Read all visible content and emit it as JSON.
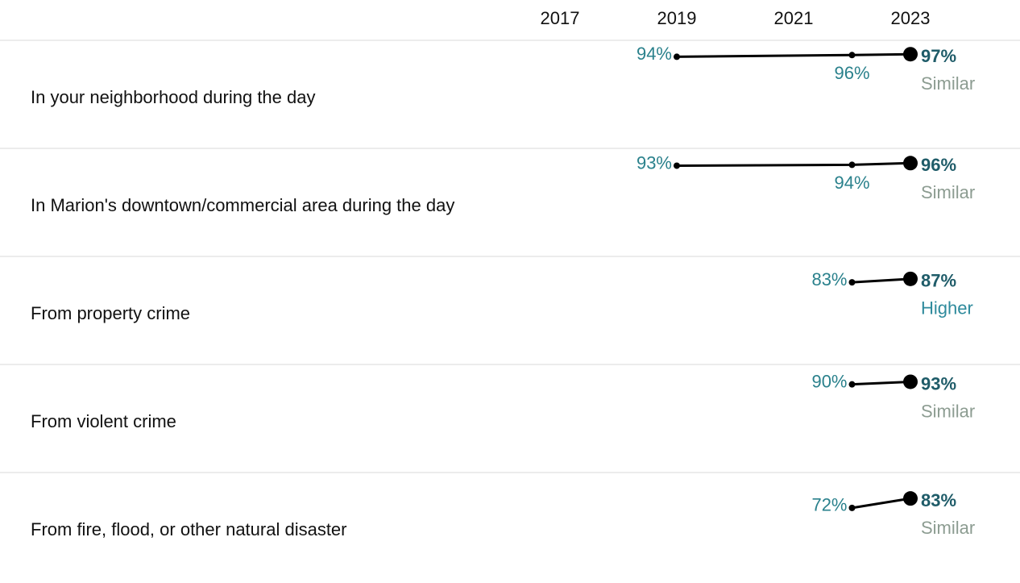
{
  "chart_data": {
    "type": "slope-table",
    "xticks": [
      2017,
      2019,
      2021,
      2023
    ],
    "xlim": [
      2016,
      2024
    ],
    "ylim": [
      70,
      100
    ],
    "line_color": "#000000",
    "value_color": "#2a818c",
    "latest_color": "#1f5c69",
    "status_colors": {
      "Similar": "#8c9c91",
      "Higher": "#2e8a9c"
    },
    "rows": [
      {
        "label": "In your neighborhood during the day",
        "x": [
          2019,
          2022,
          2023
        ],
        "values": [
          94,
          96,
          97
        ],
        "value_labels": [
          "94%",
          "96%",
          "97%"
        ],
        "status": "Similar"
      },
      {
        "label": "In Marion's downtown/commercial area during the day",
        "x": [
          2019,
          2022,
          2023
        ],
        "values": [
          93,
          94,
          96
        ],
        "value_labels": [
          "93%",
          "94%",
          "96%"
        ],
        "status": "Similar"
      },
      {
        "label": "From property crime",
        "x": [
          2022,
          2023
        ],
        "values": [
          83,
          87
        ],
        "value_labels": [
          "83%",
          "87%"
        ],
        "status": "Higher"
      },
      {
        "label": "From violent crime",
        "x": [
          2022,
          2023
        ],
        "values": [
          90,
          93
        ],
        "value_labels": [
          "90%",
          "93%"
        ],
        "status": "Similar"
      },
      {
        "label": "From fire, flood, or other natural disaster",
        "x": [
          2022,
          2023
        ],
        "values": [
          72,
          83
        ],
        "value_labels": [
          "72%",
          "83%"
        ],
        "status": "Similar"
      }
    ]
  }
}
